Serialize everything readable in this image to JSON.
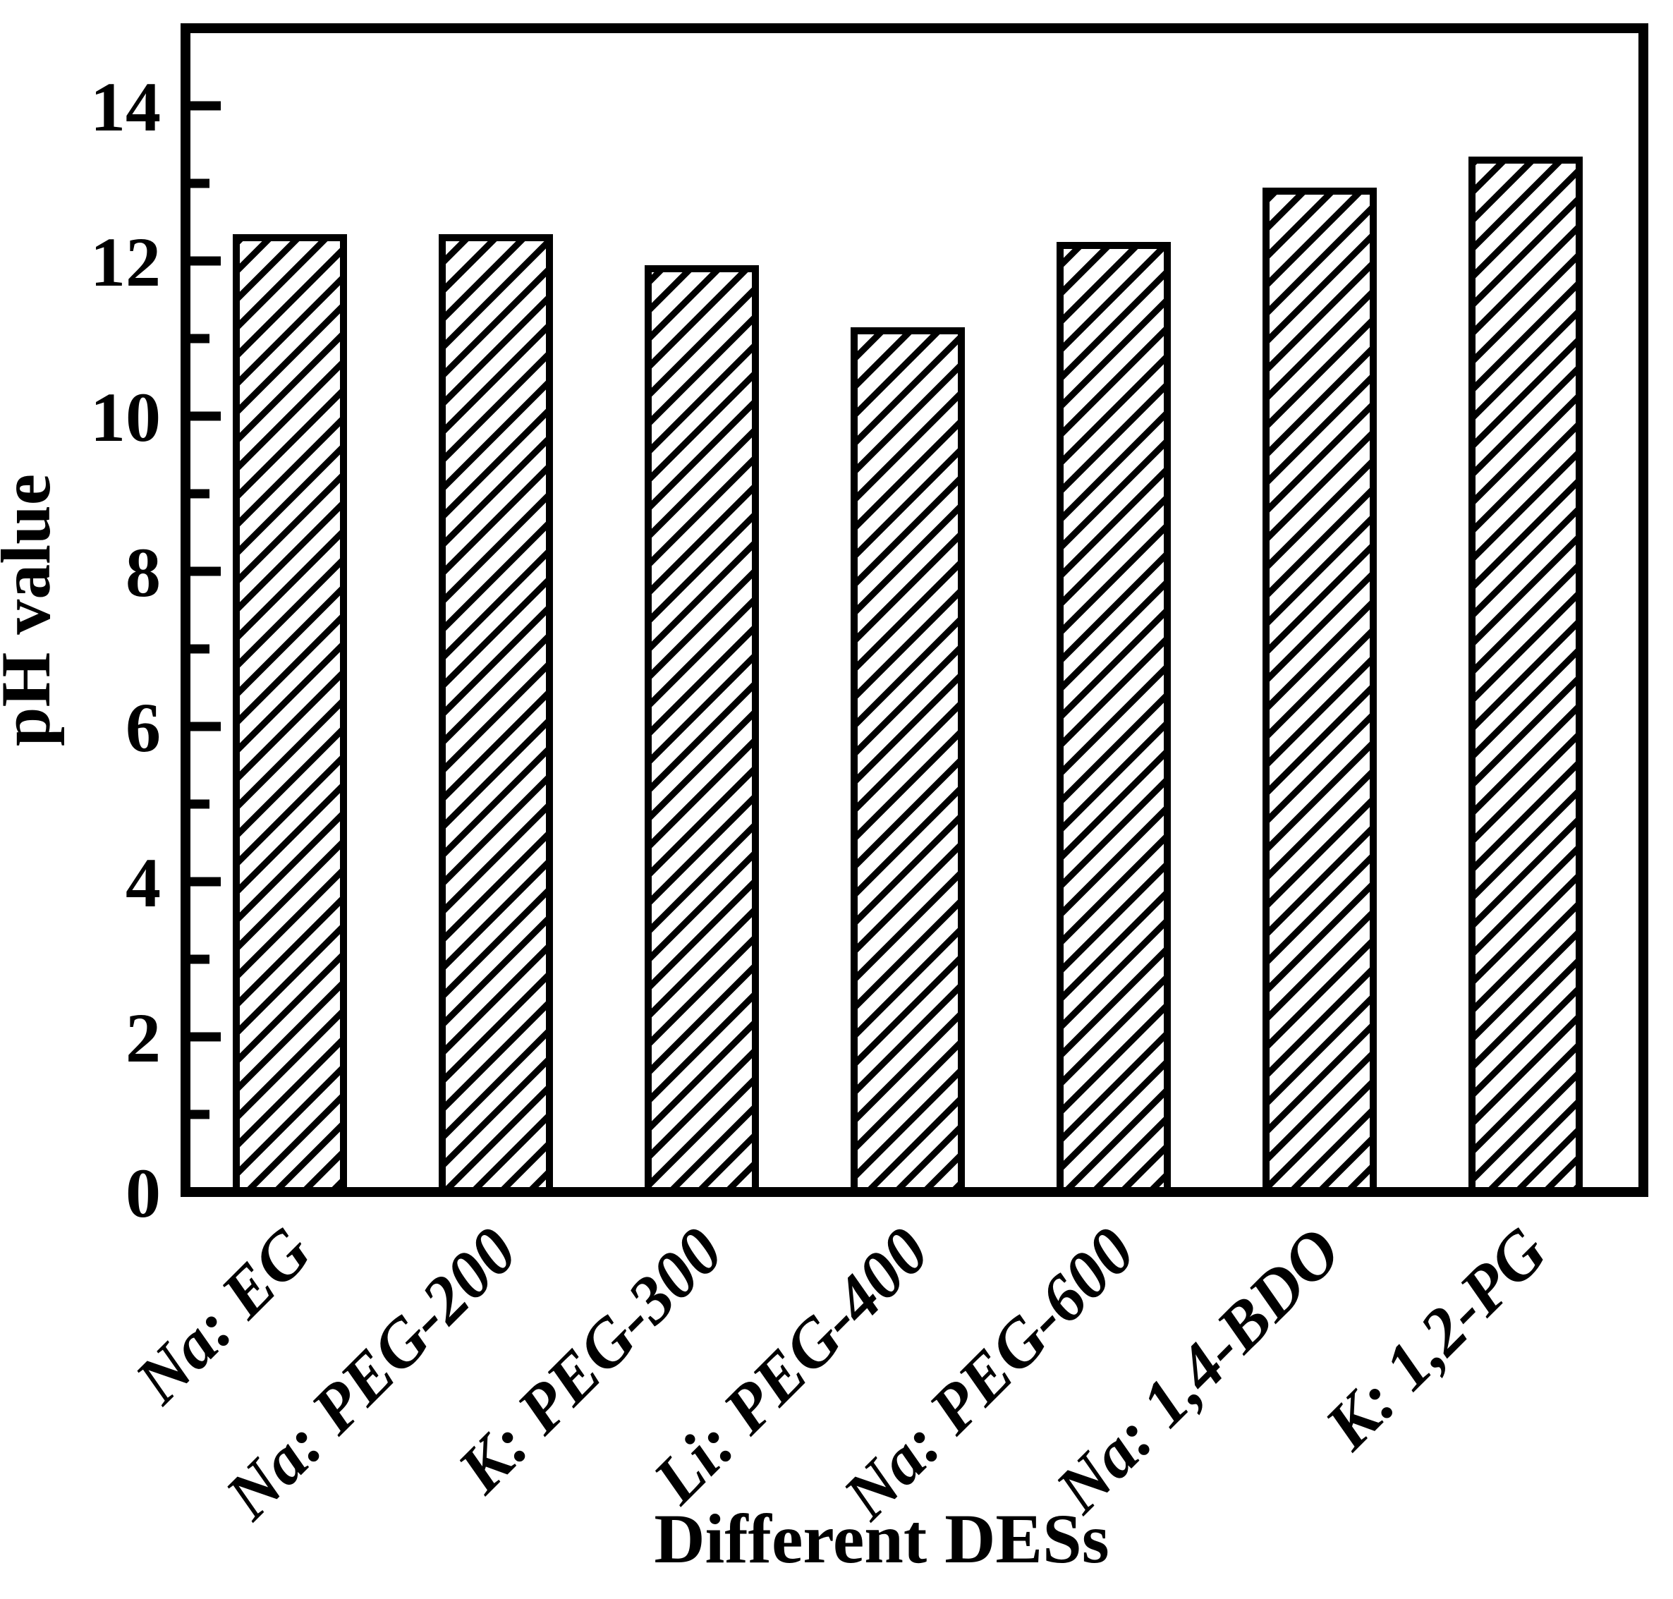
{
  "chart_data": {
    "type": "bar",
    "title": "",
    "xlabel": "Different DESs",
    "ylabel": "pH value",
    "categories": [
      "Na: EG",
      "Na: PEG-200",
      "K: PEG-300",
      "Li: PEG-400",
      "Na: PEG-600",
      "Na: 1,4-BDO",
      "K: 1,2-PG"
    ],
    "values": [
      12.3,
      12.3,
      11.9,
      11.1,
      12.2,
      12.9,
      13.3
    ],
    "ylim": [
      0,
      15
    ],
    "yticks_major": [
      0,
      2,
      4,
      6,
      8,
      10,
      12,
      14
    ],
    "yticks_minor": [
      1,
      3,
      5,
      7,
      9,
      11,
      13
    ],
    "grid": false,
    "legend": null,
    "bar_style": {
      "fill": "#ffffff",
      "hatch": "forward-diagonal",
      "edge_color": "#000000"
    },
    "colors": {
      "foreground": "#000000",
      "background": "#ffffff"
    }
  }
}
